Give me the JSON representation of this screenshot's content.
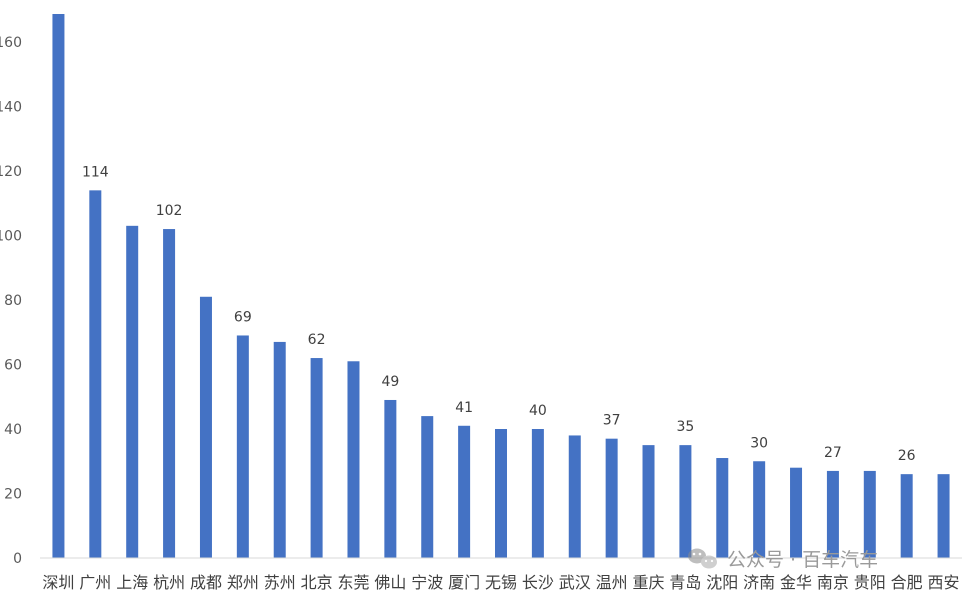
{
  "chart_data": {
    "type": "bar",
    "categories": [
      "深圳",
      "广州",
      "上海",
      "杭州",
      "成都",
      "郑州",
      "苏州",
      "北京",
      "东莞",
      "佛山",
      "宁波",
      "厦门",
      "无锡",
      "长沙",
      "武汉",
      "温州",
      "重庆",
      "青岛",
      "沈阳",
      "济南",
      "金华",
      "南京",
      "贵阳",
      "合肥",
      "西安"
    ],
    "values": [
      170,
      114,
      103,
      102,
      81,
      69,
      67,
      62,
      61,
      49,
      44,
      41,
      40,
      40,
      38,
      37,
      35,
      35,
      31,
      30,
      28,
      27,
      27,
      26,
      26
    ],
    "data_labels": [
      "",
      "114",
      "",
      "102",
      "",
      "69",
      "",
      "62",
      "",
      "49",
      "",
      "41",
      "",
      "40",
      "",
      "37",
      "",
      "35",
      "",
      "30",
      "",
      "27",
      "",
      "26",
      ""
    ],
    "y_ticks": [
      "0",
      "20",
      "40",
      "60",
      "80",
      "100",
      "120",
      "140",
      "160"
    ],
    "ylim": [
      0,
      170
    ],
    "bar_color": "#4472C4",
    "grid": false,
    "title": "",
    "xlabel": "",
    "ylabel": ""
  },
  "watermark": {
    "text": "公众号 · 百车汽车",
    "icon": "wechat-icon"
  }
}
